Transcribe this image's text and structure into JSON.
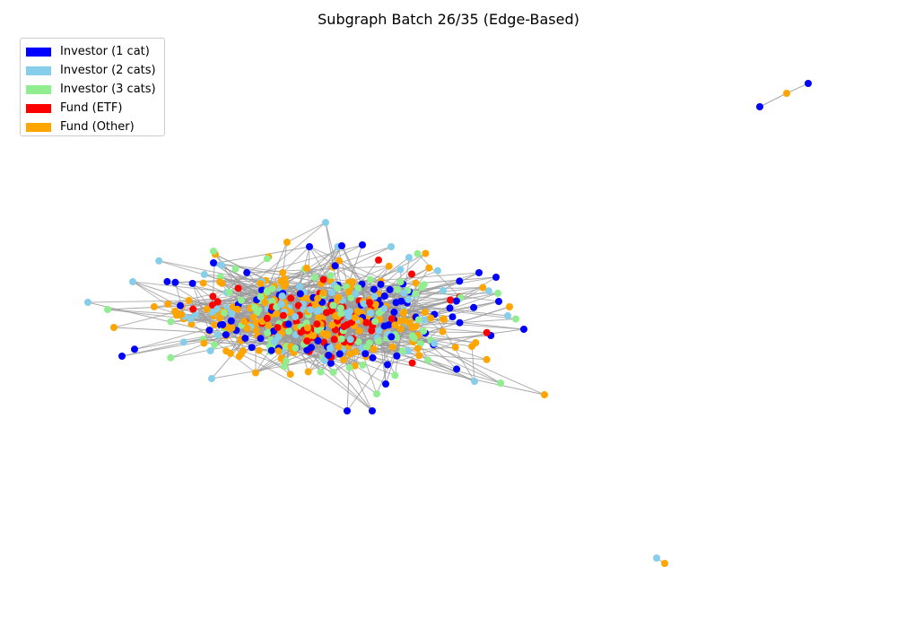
{
  "title": "Subgraph Batch 26/35 (Edge-Based)",
  "legend": [
    {
      "label": "Investor (1 cat)",
      "color": "#0000ff"
    },
    {
      "label": "Investor (2 cats)",
      "color": "#87ceeb"
    },
    {
      "label": "Investor (3 cats)",
      "color": "#90ee90"
    },
    {
      "label": "Fund (ETF)",
      "color": "#ff0000"
    },
    {
      "label": "Fund (Other)",
      "color": "#ffa500"
    }
  ],
  "edge_color": "#999999",
  "node_types": [
    "investor-1cat",
    "investor-2cats",
    "investor-3cats",
    "fund-etf",
    "fund-other"
  ],
  "components": [
    {
      "name": "main-cluster",
      "approx_nodes": 520,
      "approx_edges": 900
    },
    {
      "name": "small-component-1",
      "nodes": 3,
      "edges": 2,
      "node_colors": [
        "#0000ff",
        "#ffa500",
        "#0000ff"
      ]
    },
    {
      "name": "small-component-2",
      "nodes": 2,
      "edges": 1,
      "node_colors": [
        "#87ceeb",
        "#ffa500"
      ]
    }
  ]
}
